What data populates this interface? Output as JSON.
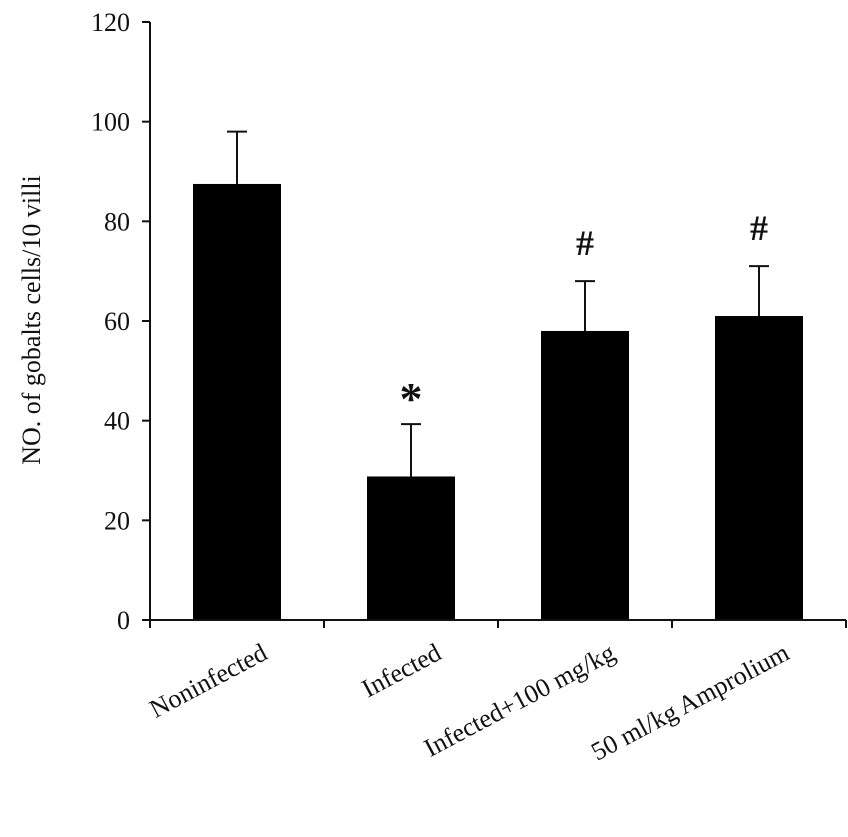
{
  "chart_data": {
    "type": "bar",
    "title": "",
    "xlabel": "",
    "ylabel": "NO. of gobalts cells/10 villi",
    "ylim": [
      0,
      120
    ],
    "yticks": [
      "0",
      "20",
      "40",
      "60",
      "80",
      "100",
      "120"
    ],
    "grid": false,
    "categories": [
      "Noninfected",
      "Infected",
      "Infected+100 mg/kg",
      "50 ml/kg Amprolium"
    ],
    "values": [
      87.5,
      28.8,
      58,
      61
    ],
    "error_plus": [
      10.5,
      10.5,
      10,
      10
    ],
    "annotations": [
      "",
      "*",
      "#",
      "#"
    ],
    "bar_color": "#000000"
  }
}
